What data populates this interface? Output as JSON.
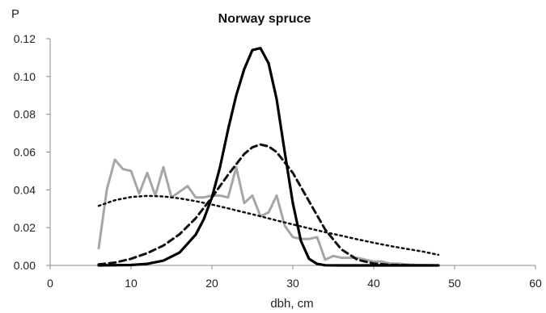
{
  "chart_data": {
    "type": "line",
    "title": "Norway spruce",
    "xlabel": "dbh, cm",
    "ylabel": "P",
    "xlim": [
      0,
      60
    ],
    "ylim": [
      0,
      0.12
    ],
    "x_ticks": [
      "0",
      "10",
      "20",
      "30",
      "40",
      "50",
      "60"
    ],
    "y_ticks": [
      "0.00",
      "0.02",
      "0.04",
      "0.06",
      "0.08",
      "0.10",
      "0.12"
    ],
    "grid": false,
    "legend": "none",
    "series": [
      {
        "style": "solid-gray",
        "color": "#a6a6a6",
        "x": [
          6,
          7,
          8,
          9,
          10,
          11,
          12,
          13,
          14,
          15,
          16,
          17,
          18,
          19,
          20,
          21,
          22,
          23,
          24,
          25,
          26,
          27,
          28,
          29,
          30,
          31,
          32,
          33,
          34,
          35,
          36,
          37,
          38,
          39,
          40,
          41,
          42,
          43,
          44,
          45,
          46,
          47,
          48
        ],
        "y": [
          0.009,
          0.04,
          0.056,
          0.051,
          0.05,
          0.038,
          0.049,
          0.037,
          0.052,
          0.036,
          0.039,
          0.042,
          0.036,
          0.036,
          0.037,
          0.037,
          0.036,
          0.052,
          0.033,
          0.037,
          0.026,
          0.028,
          0.037,
          0.021,
          0.015,
          0.014,
          0.014,
          0.015,
          0.003,
          0.005,
          0.004,
          0.004,
          0.004,
          0.003,
          0.002,
          0.002,
          0.001,
          0.001,
          0.0005,
          0.0003,
          0.0002,
          0.0001,
          0.0
        ]
      },
      {
        "style": "dotted-black",
        "color": "#111111",
        "x": [
          6,
          8,
          10,
          12,
          14,
          16,
          18,
          20,
          22,
          24,
          26,
          28,
          30,
          32,
          34,
          36,
          38,
          40,
          42,
          44,
          46,
          48
        ],
        "y": [
          0.0315,
          0.0345,
          0.0362,
          0.0368,
          0.0365,
          0.0355,
          0.034,
          0.0322,
          0.0302,
          0.0281,
          0.026,
          0.0238,
          0.0217,
          0.0196,
          0.0176,
          0.0157,
          0.0138,
          0.012,
          0.0103,
          0.0088,
          0.0074,
          0.0056
        ]
      },
      {
        "style": "dashed-black",
        "color": "#111111",
        "x": [
          6,
          8,
          10,
          12,
          14,
          16,
          18,
          20,
          22,
          24,
          25,
          26,
          27,
          28,
          30,
          32,
          34,
          36,
          38,
          40,
          42,
          44,
          46,
          48
        ],
        "y": [
          0.0005,
          0.0015,
          0.0035,
          0.0065,
          0.0105,
          0.0165,
          0.025,
          0.036,
          0.048,
          0.059,
          0.0625,
          0.064,
          0.063,
          0.06,
          0.049,
          0.034,
          0.019,
          0.0085,
          0.003,
          0.001,
          0.0003,
          0.0001,
          0.0,
          0.0
        ]
      },
      {
        "style": "solid-black",
        "color": "#000000",
        "x": [
          6,
          10,
          12,
          14,
          16,
          18,
          19,
          20,
          21,
          22,
          23,
          24,
          25,
          26,
          27,
          28,
          29,
          30,
          31,
          32,
          33,
          34,
          36,
          40,
          48
        ],
        "y": [
          0.0,
          0.0002,
          0.0008,
          0.0025,
          0.0068,
          0.0163,
          0.0245,
          0.036,
          0.052,
          0.072,
          0.09,
          0.104,
          0.114,
          0.115,
          0.107,
          0.088,
          0.06,
          0.033,
          0.013,
          0.0035,
          0.0008,
          0.0001,
          0.0,
          0.0,
          0.0
        ]
      }
    ]
  }
}
